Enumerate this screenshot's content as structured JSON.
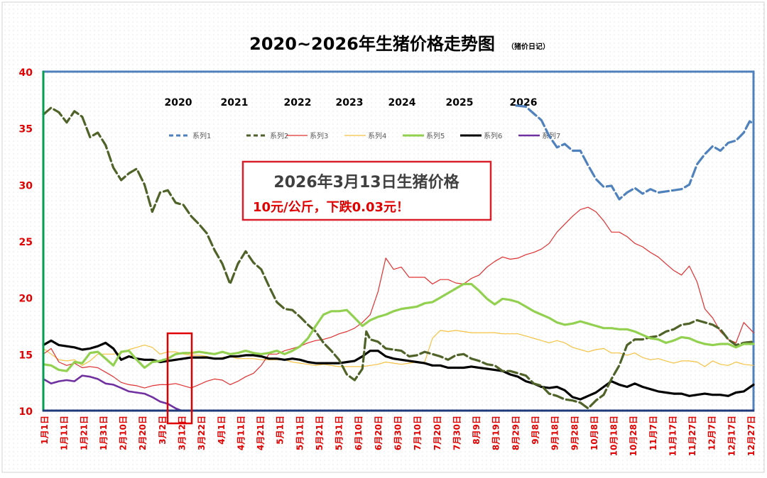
{
  "chart_data": {
    "type": "line",
    "title": "2020~2026年生猪价格走势图",
    "subtitle": "（猪价日记）",
    "ylim": [
      10,
      40
    ],
    "yticks": [
      10,
      15,
      20,
      25,
      30,
      35,
      40
    ],
    "xlim": [
      0,
      365
    ],
    "year_labels": [
      "2020",
      "2021",
      "2022",
      "2023",
      "2024",
      "2025",
      "2026"
    ],
    "x_tick_labels": [
      "1月1日",
      "1月11日",
      "1月21日",
      "1月31日",
      "2月10日",
      "2月20日",
      "3月2日",
      "3月12日",
      "3月22日",
      "4月1日",
      "4月11日",
      "4月21日",
      "5月1日",
      "5月11日",
      "5月21日",
      "5月31日",
      "6月10日",
      "6月20日",
      "6月30日",
      "7月10日",
      "7月20日",
      "7月30日",
      "8月9日",
      "8月19日",
      "8月29日",
      "9月8日",
      "9月18日",
      "9月28日",
      "10月8日",
      "10月18日",
      "10月28日",
      "11月7日",
      "11月17日",
      "11月27日",
      "12月7日",
      "12月17日",
      "12月27日"
    ],
    "annotation": {
      "line1": "2026年3月13日生猪价格",
      "line2": "10元/公斤，下跌0.03元！"
    },
    "colors": {
      "grid_dots": "#c8c8c8",
      "frame": "#4f81bd",
      "left_axis": "#00a050",
      "bottom_axis": "#1f3a7a",
      "tick_label": "#e00000",
      "annotation_border": "#d9202a",
      "annotation_text1": "#404040",
      "annotation_text2": "#e00000"
    },
    "series": [
      {
        "name": "系列1",
        "color": "#4f81bd",
        "style": "dash",
        "width": 3.2,
        "x": [
          243,
          248,
          252,
          256,
          260,
          264,
          268,
          272,
          276,
          280,
          284,
          288,
          292,
          296,
          300,
          304,
          308,
          312,
          316,
          320,
          324,
          328,
          332,
          336,
          340,
          344,
          348,
          352,
          356,
          360,
          363,
          365
        ],
        "y": [
          37.0,
          36.9,
          36.3,
          35.7,
          34.3,
          33.3,
          33.6,
          33.0,
          33.0,
          31.7,
          30.5,
          29.8,
          29.9,
          28.7,
          29.3,
          29.7,
          29.2,
          29.6,
          29.3,
          29.4,
          29.5,
          29.6,
          30.0,
          31.8,
          32.7,
          33.4,
          33.0,
          33.7,
          33.9,
          34.6,
          35.6,
          35.4
        ]
      },
      {
        "name": "系列2",
        "color": "#4f6228",
        "style": "dash",
        "width": 3.2,
        "x": [
          0,
          4,
          8,
          12,
          16,
          20,
          24,
          28,
          32,
          36,
          40,
          44,
          48,
          52,
          56,
          60,
          64,
          68,
          72,
          76,
          80,
          84,
          88,
          92,
          96,
          100,
          104,
          108,
          112,
          116,
          120,
          124,
          128,
          132,
          136,
          140,
          144,
          148,
          152,
          156,
          160,
          164,
          166,
          168,
          172,
          176,
          180,
          184,
          188,
          192,
          196,
          200,
          204,
          208,
          212,
          216,
          220,
          224,
          228,
          232,
          236,
          240,
          244,
          248,
          252,
          256,
          260,
          264,
          268,
          272,
          276,
          280,
          284,
          288,
          292,
          296,
          300,
          304,
          308,
          312,
          316,
          320,
          324,
          328,
          332,
          336,
          340,
          344,
          348,
          352,
          356,
          360,
          365
        ],
        "y": [
          36.2,
          36.8,
          36.4,
          35.5,
          36.5,
          36.0,
          34.2,
          34.6,
          33.5,
          31.5,
          30.4,
          31.0,
          31.4,
          30.0,
          27.6,
          29.3,
          29.5,
          28.4,
          28.2,
          27.2,
          26.5,
          25.7,
          24.2,
          23.0,
          21.2,
          23.0,
          24.1,
          23.1,
          22.5,
          21.0,
          19.6,
          19.0,
          18.9,
          18.3,
          17.6,
          17.0,
          16.0,
          15.3,
          14.5,
          13.2,
          12.7,
          13.7,
          17.0,
          16.3,
          16.1,
          15.5,
          15.4,
          15.3,
          14.8,
          14.9,
          15.2,
          15.0,
          14.8,
          14.5,
          14.9,
          15.0,
          14.6,
          14.4,
          14.1,
          14.0,
          13.5,
          13.5,
          13.3,
          13.1,
          12.4,
          12.2,
          11.5,
          11.3,
          11.0,
          10.9,
          10.7,
          10.2,
          10.9,
          11.4,
          12.8,
          14.0,
          15.8,
          16.3,
          16.3,
          16.5,
          16.6,
          17.0,
          17.2,
          17.6,
          17.7,
          18.0,
          17.8,
          17.6,
          17.2,
          16.3,
          15.8,
          16.0,
          16.1
        ]
      },
      {
        "name": "系列3",
        "color": "#e03030",
        "style": "solid",
        "width": 1.2,
        "x": [
          0,
          4,
          8,
          12,
          16,
          20,
          24,
          28,
          32,
          36,
          40,
          44,
          48,
          52,
          56,
          60,
          64,
          68,
          72,
          76,
          80,
          84,
          88,
          92,
          96,
          100,
          104,
          108,
          112,
          116,
          120,
          124,
          128,
          132,
          136,
          140,
          144,
          148,
          152,
          156,
          160,
          164,
          168,
          172,
          176,
          180,
          184,
          188,
          192,
          196,
          200,
          204,
          208,
          212,
          216,
          220,
          224,
          228,
          232,
          236,
          240,
          244,
          248,
          252,
          256,
          260,
          264,
          268,
          272,
          276,
          280,
          284,
          288,
          292,
          296,
          300,
          304,
          308,
          312,
          316,
          320,
          324,
          328,
          332,
          336,
          340,
          344,
          348,
          352,
          356,
          360,
          365
        ],
        "y": [
          15.0,
          15.5,
          14.3,
          14.0,
          14.2,
          13.8,
          13.9,
          13.8,
          13.4,
          13.0,
          12.5,
          12.3,
          12.2,
          12.0,
          12.2,
          12.3,
          12.3,
          12.4,
          12.2,
          12.0,
          12.3,
          12.6,
          12.8,
          12.7,
          12.3,
          12.6,
          13.0,
          13.3,
          14.0,
          15.0,
          15.0,
          15.3,
          15.5,
          15.7,
          16.0,
          16.2,
          16.3,
          16.5,
          16.8,
          17.0,
          17.3,
          17.8,
          18.5,
          20.5,
          23.5,
          22.5,
          22.7,
          21.8,
          21.8,
          21.8,
          21.2,
          21.6,
          21.6,
          21.3,
          21.2,
          21.7,
          22.0,
          22.7,
          23.2,
          23.6,
          23.4,
          23.5,
          23.8,
          24.0,
          24.3,
          24.8,
          25.8,
          26.5,
          27.2,
          27.8,
          28.0,
          27.6,
          26.8,
          25.8,
          25.8,
          25.4,
          24.8,
          24.5,
          24.0,
          23.6,
          23.0,
          22.4,
          22.0,
          22.8,
          21.4,
          19.0,
          18.2,
          17.0,
          16.3,
          16.0,
          17.8,
          16.9
        ]
      },
      {
        "name": "系列4",
        "color": "#f5c242",
        "style": "solid",
        "width": 1.2,
        "x": [
          0,
          4,
          8,
          12,
          16,
          20,
          24,
          28,
          32,
          36,
          40,
          44,
          48,
          52,
          56,
          60,
          64,
          68,
          72,
          76,
          80,
          84,
          88,
          92,
          96,
          100,
          104,
          108,
          112,
          116,
          120,
          124,
          128,
          132,
          136,
          140,
          144,
          148,
          152,
          156,
          160,
          164,
          168,
          172,
          176,
          180,
          184,
          188,
          192,
          196,
          200,
          204,
          208,
          212,
          216,
          220,
          224,
          228,
          232,
          236,
          240,
          244,
          248,
          252,
          256,
          260,
          264,
          268,
          272,
          276,
          280,
          284,
          288,
          292,
          296,
          300,
          304,
          308,
          312,
          316,
          320,
          324,
          328,
          332,
          336,
          340,
          344,
          348,
          352,
          356,
          360,
          365
        ],
        "y": [
          15.5,
          15.0,
          14.5,
          14.4,
          14.5,
          14.0,
          14.4,
          15.0,
          15.0,
          15.0,
          15.1,
          15.4,
          15.6,
          15.8,
          15.6,
          15.0,
          15.2,
          15.2,
          15.0,
          14.9,
          14.9,
          14.8,
          14.6,
          14.7,
          14.8,
          14.6,
          14.6,
          14.6,
          14.5,
          14.5,
          14.5,
          14.5,
          14.3,
          14.2,
          14.1,
          14.0,
          14.1,
          14.0,
          13.9,
          13.9,
          13.9,
          13.9,
          14.0,
          14.1,
          14.3,
          14.2,
          14.1,
          14.2,
          14.3,
          14.3,
          16.4,
          17.1,
          17.0,
          17.1,
          17.0,
          16.9,
          16.9,
          16.9,
          16.9,
          16.8,
          16.8,
          16.8,
          16.6,
          16.4,
          16.2,
          16.0,
          16.2,
          16.0,
          15.6,
          15.4,
          15.2,
          15.4,
          15.5,
          15.1,
          15.1,
          14.9,
          15.1,
          14.7,
          14.5,
          14.6,
          14.4,
          14.2,
          14.4,
          14.4,
          14.3,
          13.9,
          14.4,
          14.1,
          14.0,
          14.3,
          14.1,
          14.0
        ]
      },
      {
        "name": "系列5",
        "color": "#92d050",
        "style": "solid",
        "width": 3.2,
        "x": [
          0,
          4,
          8,
          12,
          16,
          20,
          24,
          28,
          32,
          36,
          40,
          44,
          48,
          52,
          56,
          60,
          64,
          68,
          72,
          76,
          80,
          84,
          88,
          92,
          96,
          100,
          104,
          108,
          112,
          116,
          120,
          124,
          128,
          132,
          136,
          140,
          144,
          148,
          152,
          156,
          160,
          164,
          168,
          172,
          176,
          180,
          184,
          188,
          192,
          196,
          200,
          204,
          208,
          212,
          216,
          220,
          224,
          228,
          232,
          236,
          240,
          244,
          248,
          252,
          256,
          260,
          264,
          268,
          272,
          276,
          280,
          284,
          288,
          292,
          296,
          300,
          304,
          308,
          312,
          316,
          320,
          324,
          328,
          332,
          336,
          340,
          344,
          348,
          352,
          356,
          360,
          365
        ],
        "y": [
          14.1,
          14.0,
          13.6,
          13.5,
          14.3,
          14.2,
          15.1,
          15.2,
          14.6,
          14.0,
          15.2,
          15.3,
          14.5,
          13.8,
          14.3,
          14.4,
          14.6,
          15.0,
          15.1,
          15.1,
          15.2,
          15.1,
          15.0,
          15.2,
          15.0,
          15.1,
          15.3,
          15.1,
          15.0,
          15.1,
          15.3,
          15.0,
          15.3,
          15.7,
          16.4,
          17.5,
          18.5,
          18.8,
          18.8,
          18.9,
          18.2,
          17.5,
          18.0,
          18.3,
          18.5,
          18.8,
          19.0,
          19.1,
          19.2,
          19.5,
          19.6,
          20.0,
          20.4,
          20.8,
          21.2,
          21.2,
          20.6,
          19.9,
          19.4,
          19.9,
          19.8,
          19.6,
          19.2,
          18.8,
          18.5,
          18.2,
          17.8,
          17.6,
          17.7,
          17.9,
          17.7,
          17.5,
          17.3,
          17.3,
          17.2,
          17.2,
          17.0,
          16.7,
          16.4,
          16.3,
          16.0,
          16.2,
          16.5,
          16.4,
          16.1,
          15.9,
          15.8,
          15.9,
          15.9,
          15.6,
          15.9,
          15.9
        ]
      },
      {
        "name": "系列6",
        "color": "#000000",
        "style": "solid",
        "width": 3.2,
        "x": [
          0,
          4,
          8,
          12,
          16,
          20,
          24,
          28,
          32,
          36,
          40,
          44,
          48,
          52,
          56,
          60,
          64,
          68,
          72,
          76,
          80,
          84,
          88,
          92,
          96,
          100,
          104,
          108,
          112,
          116,
          120,
          124,
          128,
          132,
          136,
          140,
          144,
          148,
          152,
          156,
          160,
          164,
          168,
          172,
          176,
          180,
          184,
          188,
          192,
          196,
          200,
          204,
          208,
          212,
          216,
          220,
          224,
          228,
          232,
          236,
          240,
          244,
          248,
          252,
          256,
          260,
          264,
          268,
          272,
          276,
          280,
          284,
          288,
          292,
          296,
          300,
          304,
          308,
          312,
          316,
          320,
          324,
          328,
          332,
          336,
          340,
          344,
          348,
          352,
          356,
          360,
          365
        ],
        "y": [
          15.8,
          16.2,
          15.8,
          15.7,
          15.6,
          15.4,
          15.5,
          15.7,
          16.0,
          15.5,
          14.5,
          14.8,
          14.6,
          14.5,
          14.5,
          14.3,
          14.4,
          14.5,
          14.6,
          14.7,
          14.7,
          14.7,
          14.6,
          14.6,
          14.8,
          14.8,
          14.9,
          14.9,
          14.8,
          14.6,
          14.6,
          14.5,
          14.6,
          14.5,
          14.3,
          14.2,
          14.2,
          14.2,
          14.2,
          14.3,
          14.4,
          14.8,
          15.3,
          15.3,
          14.8,
          14.6,
          14.5,
          14.4,
          14.3,
          14.2,
          14.0,
          14.0,
          13.8,
          13.8,
          13.8,
          13.9,
          13.8,
          13.7,
          13.6,
          13.5,
          13.2,
          13.0,
          12.6,
          12.4,
          12.1,
          12.0,
          12.1,
          11.8,
          11.2,
          11.0,
          11.3,
          11.6,
          12.1,
          12.6,
          12.3,
          12.1,
          12.4,
          12.1,
          11.9,
          11.7,
          11.6,
          11.5,
          11.5,
          11.3,
          11.4,
          11.5,
          11.4,
          11.4,
          11.3,
          11.6,
          11.7,
          12.3
        ]
      },
      {
        "name": "系列7",
        "color": "#7030a0",
        "style": "solid",
        "width": 2.6,
        "x": [
          0,
          4,
          8,
          12,
          16,
          20,
          24,
          28,
          32,
          36,
          40,
          44,
          48,
          52,
          56,
          60,
          64,
          68,
          71
        ],
        "y": [
          12.8,
          12.4,
          12.6,
          12.7,
          12.6,
          13.1,
          13.0,
          12.8,
          12.4,
          12.3,
          12.0,
          11.7,
          11.6,
          11.5,
          11.2,
          10.8,
          10.6,
          10.2,
          10.0
        ]
      }
    ]
  }
}
